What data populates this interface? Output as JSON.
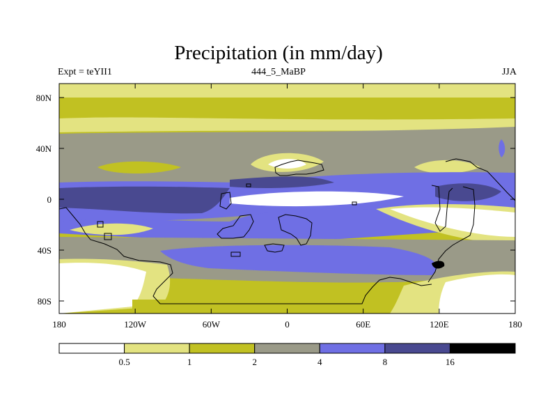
{
  "title": "Precipitation (in mm/day)",
  "subtitle_left": "Expt = teYII1",
  "subtitle_center": "444_5_MaBP",
  "subtitle_right": "JJA",
  "y_ticks": [
    "80N",
    "40N",
    "0",
    "40S",
    "80S"
  ],
  "x_ticks": [
    "180",
    "120W",
    "60W",
    "0",
    "60E",
    "120E",
    "180"
  ],
  "colorbar": {
    "colors": [
      "#ffffff",
      "#e3e381",
      "#c1c122",
      "#9a9a88",
      "#6f6fe4",
      "#494990",
      "#000000"
    ],
    "labels": [
      "0.5",
      "1",
      "2",
      "4",
      "8",
      "16"
    ]
  }
}
